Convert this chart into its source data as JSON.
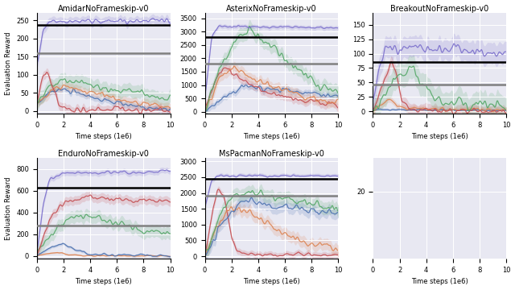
{
  "games": [
    "AmidarNoFrameskip-v0",
    "AsterixNoFrameskip-v0",
    "BreakoutNoFrameskip-v0",
    "EnduroNoFrameskip-v0",
    "MsPacmanNoFrameskip-v0",
    ""
  ],
  "colors": {
    "purple": "#7B6FCC",
    "green": "#55A868",
    "orange": "#DD8452",
    "red": "#C44E52",
    "blue": "#4C72B0"
  },
  "black_line": {
    "AmidarNoFrameskip-v0": 238,
    "AsterixNoFrameskip-v0": 2800,
    "BreakoutNoFrameskip-v0": 85,
    "EnduroNoFrameskip-v0": 632,
    "MsPacmanNoFrameskip-v0": 2450
  },
  "gray_line": {
    "AmidarNoFrameskip-v0": 160,
    "AsterixNoFrameskip-v0": 1800,
    "BreakoutNoFrameskip-v0": 47,
    "EnduroNoFrameskip-v0": 278,
    "MsPacmanNoFrameskip-v0": 1900
  },
  "ylims": {
    "AmidarNoFrameskip-v0": [
      -8,
      270
    ],
    "AsterixNoFrameskip-v0": [
      -80,
      3700
    ],
    "BreakoutNoFrameskip-v0": [
      -4,
      170
    ],
    "EnduroNoFrameskip-v0": [
      -25,
      900
    ],
    "MsPacmanNoFrameskip-v0": [
      -80,
      3100
    ],
    "": [
      0,
      30
    ]
  },
  "yticks": {
    "AmidarNoFrameskip-v0": [
      0,
      50,
      100,
      150,
      200,
      250
    ],
    "AsterixNoFrameskip-v0": [
      0,
      500,
      1000,
      1500,
      2000,
      2500,
      3000,
      3500
    ],
    "BreakoutNoFrameskip-v0": [
      0,
      25,
      50,
      75,
      100,
      125,
      150
    ],
    "EnduroNoFrameskip-v0": [
      0,
      200,
      400,
      600,
      800
    ],
    "MsPacmanNoFrameskip-v0": [
      0,
      500,
      1000,
      1500,
      2000,
      2500,
      3000
    ],
    "": [
      20
    ]
  },
  "bg_color": "#E8E8F2",
  "n_steps": 500,
  "x_max": 10
}
